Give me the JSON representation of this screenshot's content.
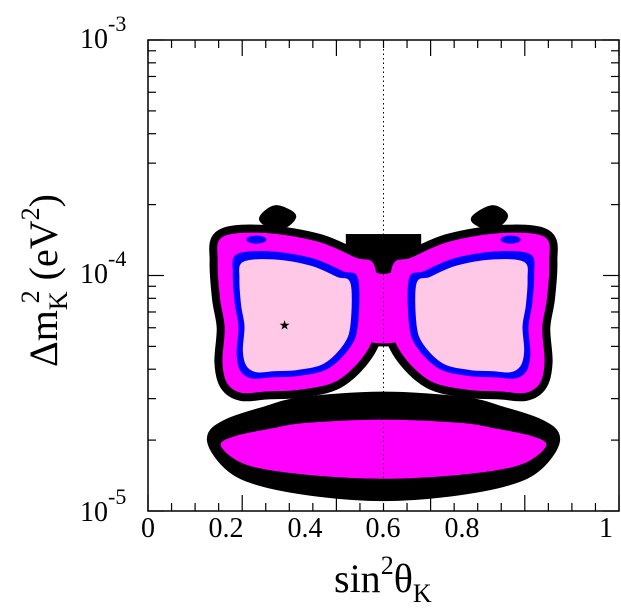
{
  "chart_data": {
    "type": "contour",
    "title": "",
    "xlabel": {
      "base": "sin",
      "sup": "2",
      "greek": "θ",
      "sub": "K"
    },
    "ylabel": {
      "delta": "Δm",
      "sub": "K",
      "sup": "2",
      "unit_open": " (eV",
      "unit_sup": "2",
      "unit_close": ")"
    },
    "xlim": [
      0,
      1
    ],
    "ylim": [
      1e-05,
      0.001
    ],
    "yscale": "log",
    "xticks": [
      {
        "value": 0,
        "label": "0"
      },
      {
        "value": 0.2,
        "label": "0.2"
      },
      {
        "value": 0.4,
        "label": "0.4"
      },
      {
        "value": 0.6,
        "label": "0.6"
      },
      {
        "value": 0.8,
        "label": "0.8"
      },
      {
        "value": 1,
        "label": "1"
      }
    ],
    "yticks": [
      {
        "value": 1e-05,
        "base": "10",
        "exp": "-5"
      },
      {
        "value": 0.0001,
        "base": "10",
        "exp": "-4"
      },
      {
        "value": 0.001,
        "base": "10",
        "exp": "-3"
      }
    ],
    "reference_line": {
      "x": 0.5,
      "style": "dotted"
    },
    "best_fit": {
      "x": 0.29,
      "y": 6.2e-05,
      "marker": "★"
    },
    "colors": {
      "outer": "#000000",
      "middle": "#ff00ff",
      "inner": "#0000ff",
      "core": "#ffc8e6"
    },
    "regions": {
      "main_lobe_left": [
        [
          0.16,
          0.000145
        ],
        [
          0.25,
          0.00015
        ],
        [
          0.36,
          0.000138
        ],
        [
          0.44,
          0.000118
        ],
        [
          0.48,
          0.000108
        ],
        [
          0.48,
          6.2e-05
        ],
        [
          0.46,
          4.7e-05
        ],
        [
          0.4,
          3.6e-05
        ],
        [
          0.32,
          3.3e-05
        ],
        [
          0.25,
          3.25e-05
        ],
        [
          0.2,
          3.2e-05
        ],
        [
          0.17,
          3.5e-05
        ],
        [
          0.16,
          4.3e-05
        ],
        [
          0.165,
          6e-05
        ],
        [
          0.155,
          8e-05
        ],
        [
          0.15,
          0.000115
        ]
      ],
      "band": [
        [
          0.17,
          2.3e-05
        ],
        [
          0.25,
          2.6e-05
        ],
        [
          0.33,
          2.85e-05
        ],
        [
          0.5,
          3e-05
        ],
        [
          0.67,
          2.85e-05
        ],
        [
          0.75,
          2.6e-05
        ],
        [
          0.83,
          2.3e-05
        ],
        [
          0.86,
          2e-05
        ],
        [
          0.82,
          1.55e-05
        ],
        [
          0.75,
          1.35e-05
        ],
        [
          0.62,
          1.22e-05
        ],
        [
          0.5,
          1.18e-05
        ],
        [
          0.38,
          1.22e-05
        ],
        [
          0.25,
          1.35e-05
        ],
        [
          0.18,
          1.55e-05
        ],
        [
          0.14,
          2e-05
        ]
      ],
      "islands": [
        [
          [
            0.24,
            0.000175
          ],
          [
            0.27,
            0.000195
          ],
          [
            0.31,
            0.00018
          ],
          [
            0.29,
            0.000162
          ],
          [
            0.26,
            0.000162
          ]
        ],
        [
          [
            0.69,
            0.000175
          ],
          [
            0.73,
            0.000195
          ],
          [
            0.76,
            0.00018
          ],
          [
            0.74,
            0.000162
          ],
          [
            0.71,
            0.000162
          ]
        ]
      ]
    }
  }
}
